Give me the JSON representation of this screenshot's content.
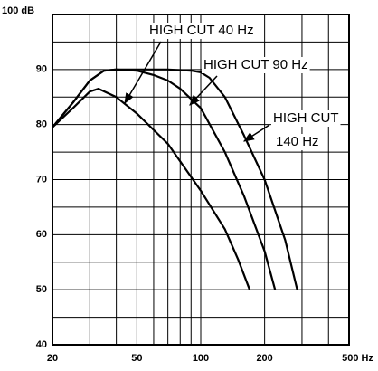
{
  "chart_data": {
    "type": "line",
    "xscale": "log",
    "grid": true,
    "color": "#000000",
    "xlim": [
      20,
      500
    ],
    "ylim": [
      40,
      100
    ],
    "xticks": [
      20,
      50,
      100,
      200,
      {
        "value": 500,
        "label": "500 Hz"
      }
    ],
    "xminor": [
      30,
      40,
      60,
      70,
      80,
      90,
      300,
      400
    ],
    "yticks": [
      40,
      50,
      60,
      70,
      80,
      90,
      {
        "value": 100,
        "label": "100 dB"
      }
    ],
    "yminor": [
      45,
      55,
      65,
      75,
      85,
      95
    ],
    "series": [
      {
        "x": [
          20,
          25,
          30,
          33,
          40,
          50,
          70,
          100,
          130,
          150,
          170
        ],
        "values": [
          79.5,
          83,
          86,
          86.5,
          85,
          82,
          76.5,
          68,
          61,
          55.5,
          50
        ]
      },
      {
        "x": [
          20,
          25,
          30,
          35,
          40,
          50,
          60,
          70,
          80,
          100,
          130,
          160,
          200,
          224
        ],
        "values": [
          79.5,
          84,
          88,
          89.8,
          90,
          89.8,
          89,
          88,
          86.5,
          83,
          75,
          67,
          57,
          50
        ]
      },
      {
        "x": [
          20,
          25,
          30,
          35,
          40,
          50,
          70,
          90,
          100,
          110,
          130,
          160,
          200,
          250,
          285
        ],
        "values": [
          79.5,
          84,
          88,
          89.8,
          90,
          90,
          90,
          89.8,
          89.5,
          88.5,
          85,
          78,
          70,
          59,
          50
        ]
      }
    ],
    "annotations": [
      [
        "HIGH CUT 40 Hz"
      ],
      [
        "HIGH CUT 90 Hz"
      ],
      [
        "HIGH CUT",
        "140 Hz"
      ]
    ]
  }
}
